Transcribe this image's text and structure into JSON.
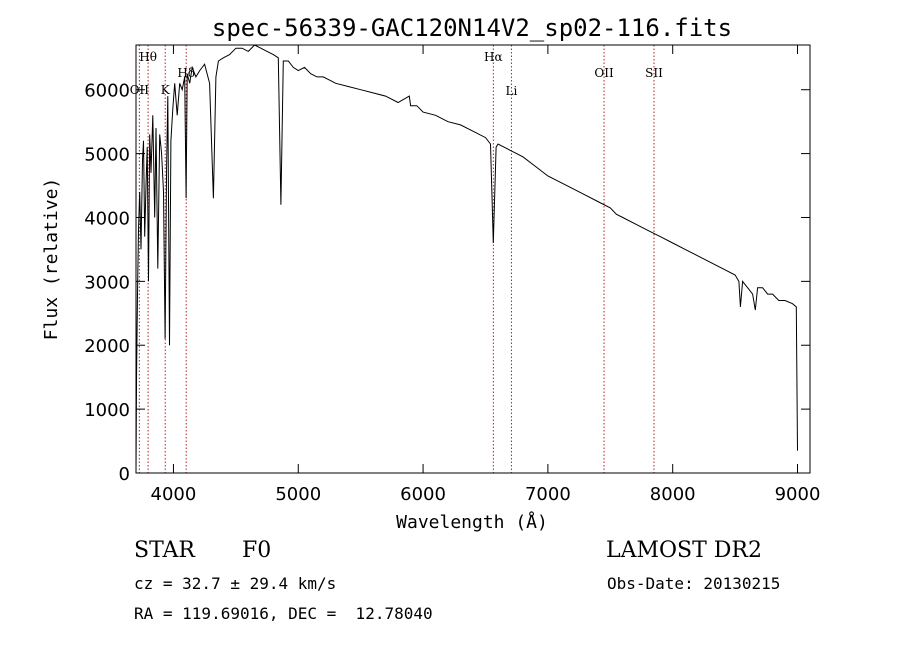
{
  "chart_data": {
    "type": "line",
    "title": "spec-56339-GAC120N14V2_sp02-116.fits",
    "xlabel": "Wavelength (Å)",
    "ylabel": "Flux (relative)",
    "xlim": [
      3700,
      9100
    ],
    "ylim": [
      0,
      6700
    ],
    "xticks": [
      4000,
      5000,
      6000,
      7000,
      8000,
      9000
    ],
    "yticks": [
      0,
      1000,
      2000,
      3000,
      4000,
      5000,
      6000
    ],
    "grid": false,
    "series": [
      {
        "x": [
          3700,
          3705,
          3712,
          3720,
          3730,
          3740,
          3752,
          3760,
          3770,
          3780,
          3790,
          3800,
          3810,
          3820,
          3835,
          3850,
          3860,
          3875,
          3890,
          3905,
          3920,
          3933,
          3945,
          3955,
          3968,
          3980,
          3995,
          4010,
          4030,
          4050,
          4070,
          4090,
          4101,
          4110,
          4130,
          4150,
          4180,
          4210,
          4250,
          4290,
          4320,
          4340,
          4360,
          4400,
          4450,
          4500,
          4550,
          4600,
          4650,
          4700,
          4750,
          4800,
          4840,
          4861,
          4880,
          4920,
          4960,
          5000,
          5050,
          5100,
          5150,
          5200,
          5250,
          5300,
          5400,
          5500,
          5600,
          5700,
          5800,
          5890,
          5900,
          5950,
          6000,
          6100,
          6200,
          6300,
          6400,
          6500,
          6540,
          6563,
          6585,
          6600,
          6650,
          6700,
          6800,
          6900,
          7000,
          7100,
          7200,
          7300,
          7400,
          7500,
          7550,
          7600,
          7700,
          7800,
          7900,
          8000,
          8100,
          8200,
          8300,
          8400,
          8500,
          8530,
          8542,
          8560,
          8600,
          8640,
          8662,
          8680,
          8720,
          8760,
          8800,
          8850,
          8900,
          8960,
          8990,
          9000
        ],
        "y": [
          0,
          1600,
          2800,
          3800,
          4400,
          3500,
          4900,
          5200,
          3700,
          4500,
          5100,
          3000,
          5300,
          4700,
          5600,
          4000,
          5400,
          3200,
          5300,
          5000,
          4400,
          2100,
          4800,
          5900,
          2000,
          5200,
          5700,
          6100,
          5600,
          6100,
          6000,
          6200,
          4300,
          6250,
          6100,
          6350,
          6200,
          6300,
          6400,
          6100,
          4300,
          6200,
          6450,
          6500,
          6550,
          6650,
          6650,
          6600,
          6700,
          6650,
          6600,
          6550,
          6500,
          4200,
          6450,
          6450,
          6350,
          6300,
          6350,
          6250,
          6200,
          6200,
          6150,
          6100,
          6050,
          6000,
          5950,
          5900,
          5800,
          5900,
          5750,
          5750,
          5650,
          5600,
          5500,
          5450,
          5350,
          5250,
          5150,
          3600,
          5100,
          5150,
          5100,
          5050,
          4950,
          4800,
          4650,
          4550,
          4450,
          4350,
          4250,
          4150,
          4050,
          4000,
          3900,
          3800,
          3700,
          3600,
          3500,
          3400,
          3300,
          3200,
          3100,
          3000,
          2600,
          3000,
          2900,
          2800,
          2550,
          2900,
          2900,
          2800,
          2800,
          2700,
          2700,
          2650,
          2600,
          350
        ]
      }
    ],
    "lines": [
      {
        "label": "Hθ",
        "x": 3797,
        "pos": 1
      },
      {
        "label": "OII",
        "x": 3727,
        "pos": 2
      },
      {
        "label": "K",
        "x": 3934,
        "pos": 2
      },
      {
        "label": "Hδ",
        "x": 4102,
        "pos": 3
      },
      {
        "label": "Hα",
        "x": 6563,
        "pos": 1
      },
      {
        "label": "Li",
        "x": 6708,
        "pos": 4
      },
      {
        "label": "OII",
        "x": 7450,
        "pos": 5
      },
      {
        "label": "SII",
        "x": 7850,
        "pos": 5
      }
    ]
  },
  "info": {
    "class": "STAR",
    "subclass": "F0",
    "survey": "LAMOST DR2",
    "cz": "cz = 32.7 ± 29.4 km/s",
    "obs_date": "Obs-Date: 20130215",
    "coords": "RA = 119.69016, DEC =  12.78040"
  }
}
